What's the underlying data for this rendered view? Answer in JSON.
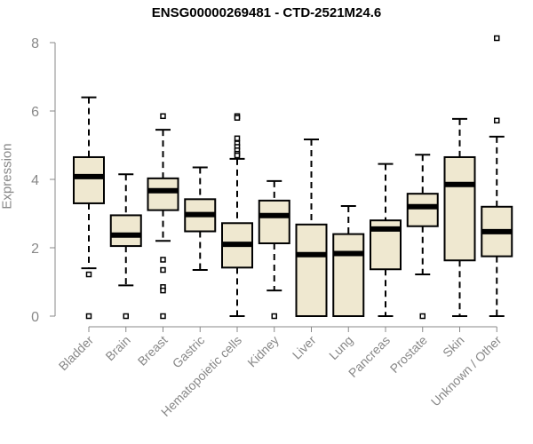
{
  "chart_data": {
    "type": "boxplot",
    "title": "ENSG00000269481 - CTD-2521M24.6",
    "ylabel": "Expression",
    "xlabel": "",
    "ylim": [
      0,
      8
    ],
    "yticks": [
      0,
      2,
      4,
      6,
      8
    ],
    "grid": false,
    "legend": "none",
    "colors": {
      "box_fill": "#efe8d0",
      "outline": "#000000",
      "axis": "#888888"
    },
    "categories": [
      "Bladder",
      "Brain",
      "Breast",
      "Gastric",
      "Hematopoietic cells",
      "Kidney",
      "Liver",
      "Lung",
      "Pancreas",
      "Prostate",
      "Skin",
      "Unknown / Other"
    ],
    "boxes": [
      {
        "category": "Bladder",
        "whislo": 1.4,
        "q1": 3.3,
        "med": 4.08,
        "q3": 4.65,
        "whishi": 6.4,
        "fliers": [
          0,
          1.22
        ]
      },
      {
        "category": "Brain",
        "whislo": 0.9,
        "q1": 2.05,
        "med": 2.37,
        "q3": 2.95,
        "whishi": 4.15,
        "fliers": [
          0
        ]
      },
      {
        "category": "Breast",
        "whislo": 2.2,
        "q1": 3.1,
        "med": 3.67,
        "q3": 4.03,
        "whishi": 5.45,
        "fliers": [
          5.85,
          1.65,
          1.35,
          0.85,
          0.75,
          0
        ]
      },
      {
        "category": "Gastric",
        "whislo": 1.35,
        "q1": 2.48,
        "med": 2.97,
        "q3": 3.42,
        "whishi": 4.35,
        "fliers": []
      },
      {
        "category": "Hematopoietic cells",
        "whislo": 0.0,
        "q1": 1.42,
        "med": 2.1,
        "q3": 2.72,
        "whishi": 4.6,
        "fliers": [
          5.85,
          5.8,
          5.2,
          5.05,
          4.95,
          4.85,
          4.75,
          4.7
        ]
      },
      {
        "category": "Kidney",
        "whislo": 0.75,
        "q1": 2.13,
        "med": 2.94,
        "q3": 3.38,
        "whishi": 3.95,
        "fliers": [
          0
        ]
      },
      {
        "category": "Liver",
        "whislo": 0.0,
        "q1": 0.0,
        "med": 1.8,
        "q3": 2.68,
        "whishi": 5.17,
        "fliers": []
      },
      {
        "category": "Lung",
        "whislo": 0.0,
        "q1": 0.0,
        "med": 1.83,
        "q3": 2.4,
        "whishi": 3.22,
        "fliers": []
      },
      {
        "category": "Pancreas",
        "whislo": 0.0,
        "q1": 1.37,
        "med": 2.55,
        "q3": 2.8,
        "whishi": 4.45,
        "fliers": []
      },
      {
        "category": "Prostate",
        "whislo": 1.22,
        "q1": 2.63,
        "med": 3.2,
        "q3": 3.58,
        "whishi": 4.72,
        "fliers": [
          0
        ]
      },
      {
        "category": "Skin",
        "whislo": 0.0,
        "q1": 1.63,
        "med": 3.85,
        "q3": 4.65,
        "whishi": 5.77,
        "fliers": []
      },
      {
        "category": "Unknown / Other",
        "whislo": 0.0,
        "q1": 1.75,
        "med": 2.47,
        "q3": 3.2,
        "whishi": 5.25,
        "fliers": [
          8.13,
          5.72
        ]
      }
    ]
  }
}
